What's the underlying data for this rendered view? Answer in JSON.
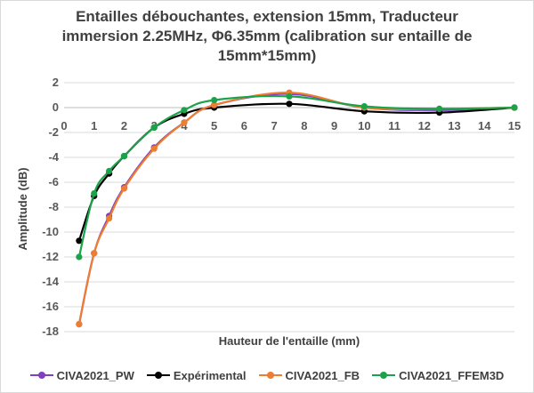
{
  "chart_data": {
    "type": "line",
    "title": "Entailles débouchantes, extension 15mm, Traducteur immersion 2.25MHz, Φ6.35mm (calibration sur entaille de 15mm*15mm)",
    "xlabel": "Hauteur de l'entaille (mm)",
    "ylabel": "Amplitude (dB)",
    "xlim": [
      0,
      15
    ],
    "ylim": [
      -18,
      2
    ],
    "xticks": [
      "0",
      "1",
      "2",
      "3",
      "4",
      "5",
      "6",
      "7",
      "8",
      "9",
      "10",
      "11",
      "12",
      "13",
      "14",
      "15"
    ],
    "yticks": [
      "2",
      "0",
      "-2",
      "-4",
      "-6",
      "-8",
      "-10",
      "-12",
      "-14",
      "-16",
      "-18"
    ],
    "grid": "horizontal",
    "legend_position": "bottom",
    "series": [
      {
        "name": "CIVA2021_PW",
        "color": "#7f3fbf",
        "x": [
          0.5,
          1.0,
          1.5,
          2.0,
          3.0,
          4.0,
          5.0,
          7.5,
          10.0,
          12.5,
          15.0
        ],
        "y": [
          -17.4,
          -11.7,
          -8.7,
          -6.4,
          -3.2,
          -1.2,
          0.2,
          1.1,
          0.0,
          -0.2,
          0.0
        ]
      },
      {
        "name": "Expérimental",
        "color": "#000000",
        "x": [
          0.5,
          1.0,
          1.5,
          2.0,
          3.0,
          4.0,
          5.0,
          7.5,
          10.0,
          12.5,
          15.0
        ],
        "y": [
          -10.7,
          -7.1,
          -5.3,
          -3.9,
          -1.6,
          -0.5,
          0.0,
          0.3,
          -0.3,
          -0.4,
          0.0
        ]
      },
      {
        "name": "CIVA2021_FB",
        "color": "#ed7d31",
        "x": [
          0.5,
          1.0,
          1.5,
          2.0,
          3.0,
          4.0,
          5.0,
          7.5,
          10.0,
          12.5,
          15.0
        ],
        "y": [
          -17.4,
          -11.7,
          -8.9,
          -6.5,
          -3.3,
          -1.2,
          0.2,
          1.2,
          0.0,
          -0.1,
          0.0
        ]
      },
      {
        "name": "CIVA2021_FFEM3D",
        "color": "#1aa34a",
        "x": [
          0.5,
          1.0,
          1.5,
          2.0,
          3.0,
          4.0,
          5.0,
          7.5,
          10.0,
          12.5,
          15.0
        ],
        "y": [
          -12.0,
          -6.9,
          -5.1,
          -3.9,
          -1.6,
          -0.2,
          0.6,
          0.9,
          0.1,
          -0.1,
          0.0
        ]
      }
    ]
  }
}
